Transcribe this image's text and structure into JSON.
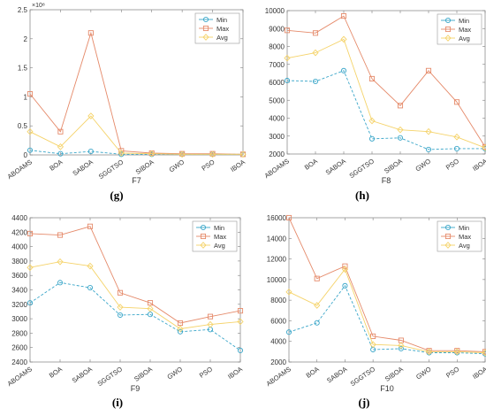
{
  "colors": {
    "Min": "#3aa6c9",
    "Max": "#e58a6a",
    "Avg": "#f5d36a"
  },
  "captions": [
    "(g)",
    "(h)",
    "(i)",
    "(j)"
  ],
  "chart_data": [
    {
      "type": "line",
      "title": "F7",
      "exponent_label": "×10⁸",
      "categories": [
        "ABOAMS",
        "BOA",
        "SABOA",
        "SGGTSO",
        "SIBOA",
        "GWO",
        "PSO",
        "IBOA"
      ],
      "ylim": [
        0,
        2.5
      ],
      "yticks": [
        0,
        0.5,
        1,
        1.5,
        2,
        2.5
      ],
      "legend_position": "top-right",
      "series": [
        {
          "name": "Min",
          "values": [
            0.08,
            0.02,
            0.06,
            0.01,
            0.01,
            0.01,
            0.01,
            0.01
          ]
        },
        {
          "name": "Max",
          "values": [
            1.05,
            0.4,
            2.1,
            0.07,
            0.03,
            0.02,
            0.02,
            0.01
          ]
        },
        {
          "name": "Avg",
          "values": [
            0.4,
            0.14,
            0.67,
            0.03,
            0.02,
            0.01,
            0.01,
            0.01
          ]
        }
      ]
    },
    {
      "type": "line",
      "title": "F8",
      "categories": [
        "ABOAMS",
        "BOA",
        "SABOA",
        "SGGTSO",
        "SIBOA",
        "GWO",
        "PSO",
        "IBOA"
      ],
      "ylim": [
        2000,
        10000
      ],
      "yticks": [
        2000,
        3000,
        4000,
        5000,
        6000,
        7000,
        8000,
        9000,
        10000
      ],
      "legend_position": "top-right",
      "series": [
        {
          "name": "Min",
          "values": [
            6100,
            6050,
            6650,
            2850,
            2900,
            2250,
            2300,
            2300
          ]
        },
        {
          "name": "Max",
          "values": [
            8900,
            8750,
            9700,
            6200,
            4700,
            6650,
            4900,
            2400
          ]
        },
        {
          "name": "Avg",
          "values": [
            7350,
            7650,
            8400,
            3850,
            3350,
            3250,
            2950,
            2350
          ]
        }
      ]
    },
    {
      "type": "line",
      "title": "F9",
      "categories": [
        "ABOAMS",
        "BOA",
        "SABOA",
        "SGGTSO",
        "SIBOA",
        "GWO",
        "PSO",
        "IBOA"
      ],
      "ylim": [
        2400,
        4400
      ],
      "yticks": [
        2400,
        2600,
        2800,
        3000,
        3200,
        3400,
        3600,
        3800,
        4000,
        4200,
        4400
      ],
      "legend_position": "top-right",
      "series": [
        {
          "name": "Min",
          "values": [
            3220,
            3500,
            3430,
            3050,
            3060,
            2820,
            2850,
            2560
          ]
        },
        {
          "name": "Max",
          "values": [
            4180,
            4160,
            4280,
            3360,
            3220,
            2940,
            3030,
            3110
          ]
        },
        {
          "name": "Avg",
          "values": [
            3710,
            3790,
            3730,
            3160,
            3140,
            2860,
            2920,
            2960
          ]
        }
      ]
    },
    {
      "type": "line",
      "title": "F10",
      "categories": [
        "ABOAMS",
        "BOA",
        "SABOA",
        "SGGTSO",
        "SIBOA",
        "GWO",
        "PSO",
        "IBOA"
      ],
      "ylim": [
        2000,
        16000
      ],
      "yticks": [
        2000,
        4000,
        6000,
        8000,
        10000,
        12000,
        14000,
        16000
      ],
      "legend_position": "top-right",
      "series": [
        {
          "name": "Min",
          "values": [
            4900,
            5800,
            9400,
            3200,
            3300,
            2900,
            2900,
            2800
          ]
        },
        {
          "name": "Max",
          "values": [
            16000,
            10100,
            11300,
            4500,
            4100,
            3100,
            3100,
            3000
          ]
        },
        {
          "name": "Avg",
          "values": [
            8800,
            7500,
            11000,
            3700,
            3600,
            3000,
            3000,
            2900
          ]
        }
      ]
    }
  ]
}
